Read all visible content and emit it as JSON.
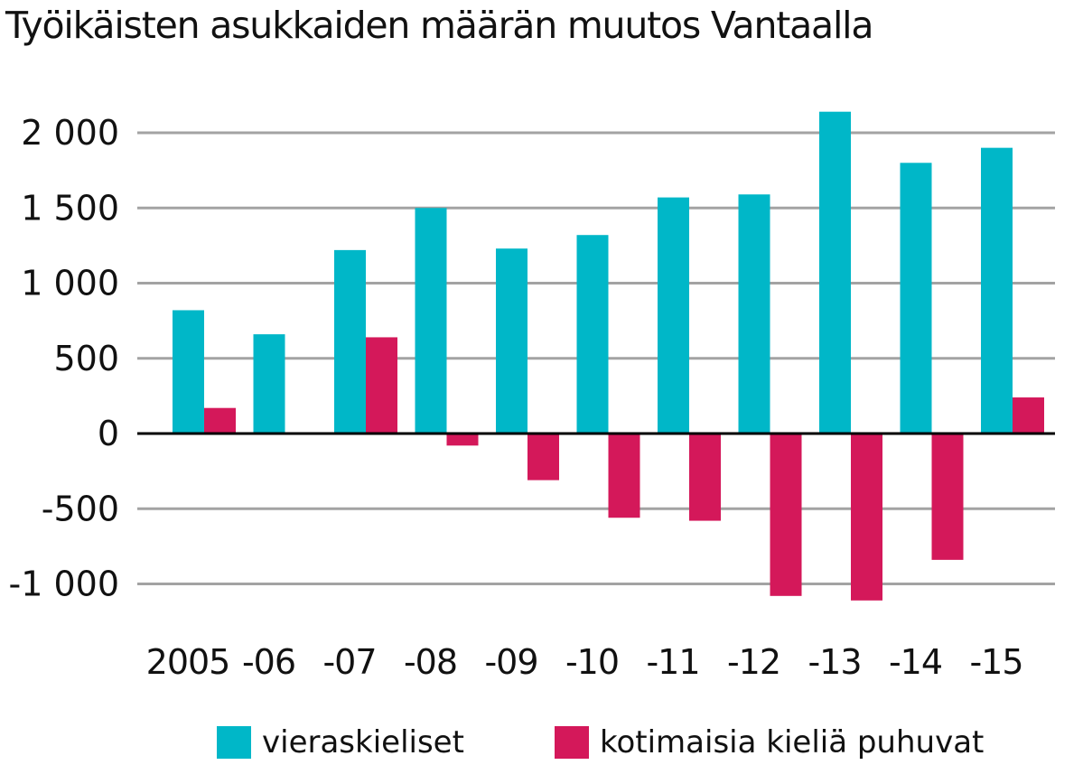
{
  "chart_data": {
    "type": "bar",
    "title": "Työikäisten asukkaiden määrän muutos Vantaalla",
    "categories": [
      "2005",
      "-06",
      "-07",
      "-08",
      "-09",
      "-10",
      "-11",
      "-12",
      "-13",
      "-14",
      "-15"
    ],
    "series": [
      {
        "name": "vieraskieliset",
        "color": "#00b7c8",
        "values": [
          820,
          660,
          1220,
          1500,
          1230,
          1320,
          1570,
          1590,
          2140,
          1800,
          1900
        ]
      },
      {
        "name": "kotimaisia kieliä puhuvat",
        "color": "#d4185a",
        "values": [
          170,
          0,
          640,
          -80,
          -310,
          -560,
          -580,
          -1080,
          -1110,
          -840,
          240
        ]
      }
    ],
    "ylim": [
      -1150,
      2200
    ],
    "yticks": [
      2000,
      1500,
      1000,
      500,
      0,
      -500,
      -1000
    ],
    "ytick_labels": [
      "2 000",
      "1 500",
      "1 000",
      "500",
      "0",
      "-500",
      "-1 000"
    ],
    "grid": true,
    "legend_position": "bottom",
    "xlabel": "",
    "ylabel": ""
  }
}
